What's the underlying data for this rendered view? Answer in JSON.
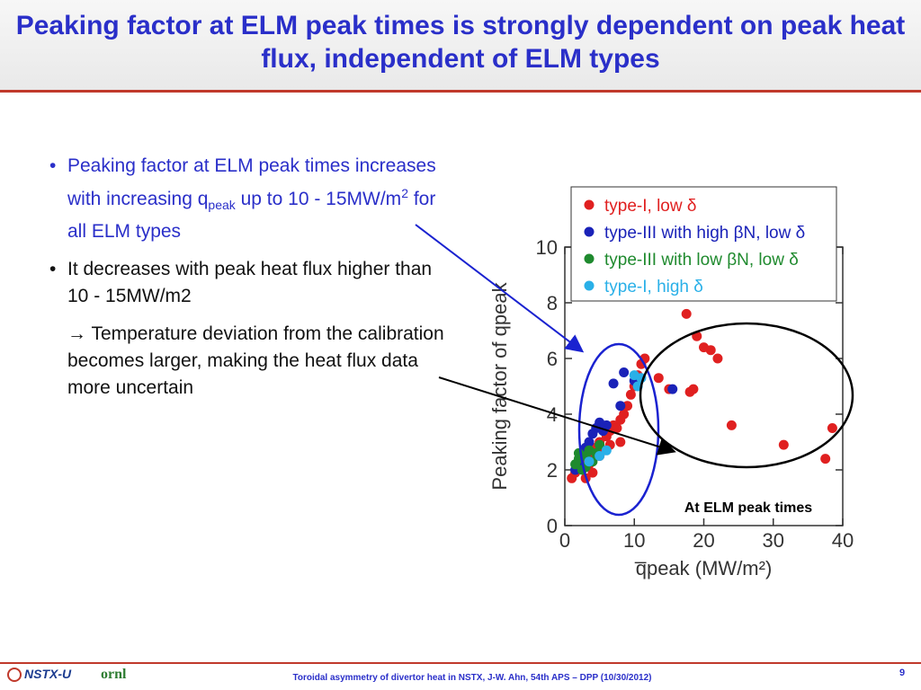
{
  "title": "Peaking factor at ELM peak times is strongly dependent on peak heat flux, independent of ELM types",
  "bullets": [
    {
      "pre": "Peaking factor at ELM peak times increases with increasing q",
      "sub": "peak",
      "mid": " up to 10 - 15MW/m",
      "sup": "2",
      "post": " for all ELM types"
    },
    {
      "text": "It decreases with peak heat flux higher than 10 - 15MW/m2"
    }
  ],
  "arrow_note": "→ Temperature deviation from the calibration becomes larger, making the heat flux data more uncertain",
  "footer": {
    "logo_text": "NSTX-U",
    "ornl_text": "ornl",
    "citation": "Toroidal asymmetry of divertor heat in NSTX, J-W. Ahn, 54th APS – DPP (10/30/2012)",
    "page": "9"
  },
  "chart_data": {
    "type": "scatter",
    "xlabel": "q̅peak (MW/m²)",
    "ylabel": "Peaking factor of qpeak",
    "xlim": [
      0,
      40
    ],
    "ylim": [
      0,
      10
    ],
    "xticks": [
      "0",
      "10",
      "20",
      "30",
      "40"
    ],
    "yticks": [
      "0",
      "2",
      "4",
      "6",
      "8",
      "10"
    ],
    "annotation": "At ELM peak times",
    "legend_position": "top-right",
    "series": [
      {
        "name": "type-I, low δ",
        "color": "#e02020",
        "points": [
          [
            1.0,
            1.7
          ],
          [
            1.5,
            1.9
          ],
          [
            2.0,
            2.1
          ],
          [
            2.5,
            2.3
          ],
          [
            3.0,
            2.4
          ],
          [
            3.5,
            2.2
          ],
          [
            4.0,
            2.6
          ],
          [
            4.5,
            2.8
          ],
          [
            5.0,
            3.0
          ],
          [
            5.5,
            2.7
          ],
          [
            6.0,
            3.2
          ],
          [
            6.5,
            3.4
          ],
          [
            7.0,
            3.6
          ],
          [
            7.5,
            3.5
          ],
          [
            8.0,
            3.8
          ],
          [
            8.5,
            4.0
          ],
          [
            9.0,
            4.3
          ],
          [
            9.5,
            4.7
          ],
          [
            10.0,
            5.0
          ],
          [
            10.5,
            5.4
          ],
          [
            11.0,
            5.8
          ],
          [
            11.5,
            6.0
          ],
          [
            13.5,
            5.3
          ],
          [
            15.0,
            4.9
          ],
          [
            18.0,
            4.8
          ],
          [
            18.5,
            4.9
          ],
          [
            17.5,
            7.6
          ],
          [
            19.0,
            6.8
          ],
          [
            20.0,
            6.4
          ],
          [
            21.0,
            6.3
          ],
          [
            22.0,
            6.0
          ],
          [
            24.0,
            3.6
          ],
          [
            31.5,
            2.9
          ],
          [
            37.5,
            2.4
          ],
          [
            38.5,
            3.5
          ],
          [
            4.0,
            1.9
          ],
          [
            6.5,
            2.9
          ],
          [
            8.0,
            3.0
          ],
          [
            3.0,
            1.7
          ],
          [
            5.0,
            2.5
          ]
        ]
      },
      {
        "name": "type-III with high βN, low δ",
        "color": "#1a22b8",
        "points": [
          [
            1.5,
            2.0
          ],
          [
            2.0,
            2.3
          ],
          [
            2.5,
            2.6
          ],
          [
            3.0,
            2.8
          ],
          [
            3.5,
            3.0
          ],
          [
            4.0,
            3.3
          ],
          [
            4.5,
            3.5
          ],
          [
            5.0,
            3.7
          ],
          [
            5.5,
            3.4
          ],
          [
            6.0,
            3.6
          ],
          [
            7.0,
            5.1
          ],
          [
            8.5,
            5.5
          ],
          [
            8.0,
            4.3
          ],
          [
            10.0,
            5.2
          ],
          [
            15.5,
            4.9
          ],
          [
            2.5,
            2.1
          ]
        ]
      },
      {
        "name": "type-III with low βN, low δ",
        "color": "#1f8a2e",
        "points": [
          [
            1.5,
            2.2
          ],
          [
            2.0,
            2.4
          ],
          [
            2.5,
            2.0
          ],
          [
            3.0,
            2.5
          ],
          [
            3.5,
            2.7
          ],
          [
            4.0,
            2.3
          ],
          [
            4.5,
            2.6
          ],
          [
            5.0,
            2.9
          ],
          [
            3.0,
            2.1
          ],
          [
            2.0,
            2.6
          ]
        ]
      },
      {
        "name": "type-I, high δ",
        "color": "#2ab0e8",
        "points": [
          [
            3.5,
            2.3
          ],
          [
            5.0,
            2.5
          ],
          [
            6.0,
            2.7
          ],
          [
            10.5,
            5.0
          ],
          [
            11.0,
            5.3
          ],
          [
            10.0,
            5.4
          ]
        ]
      }
    ]
  }
}
